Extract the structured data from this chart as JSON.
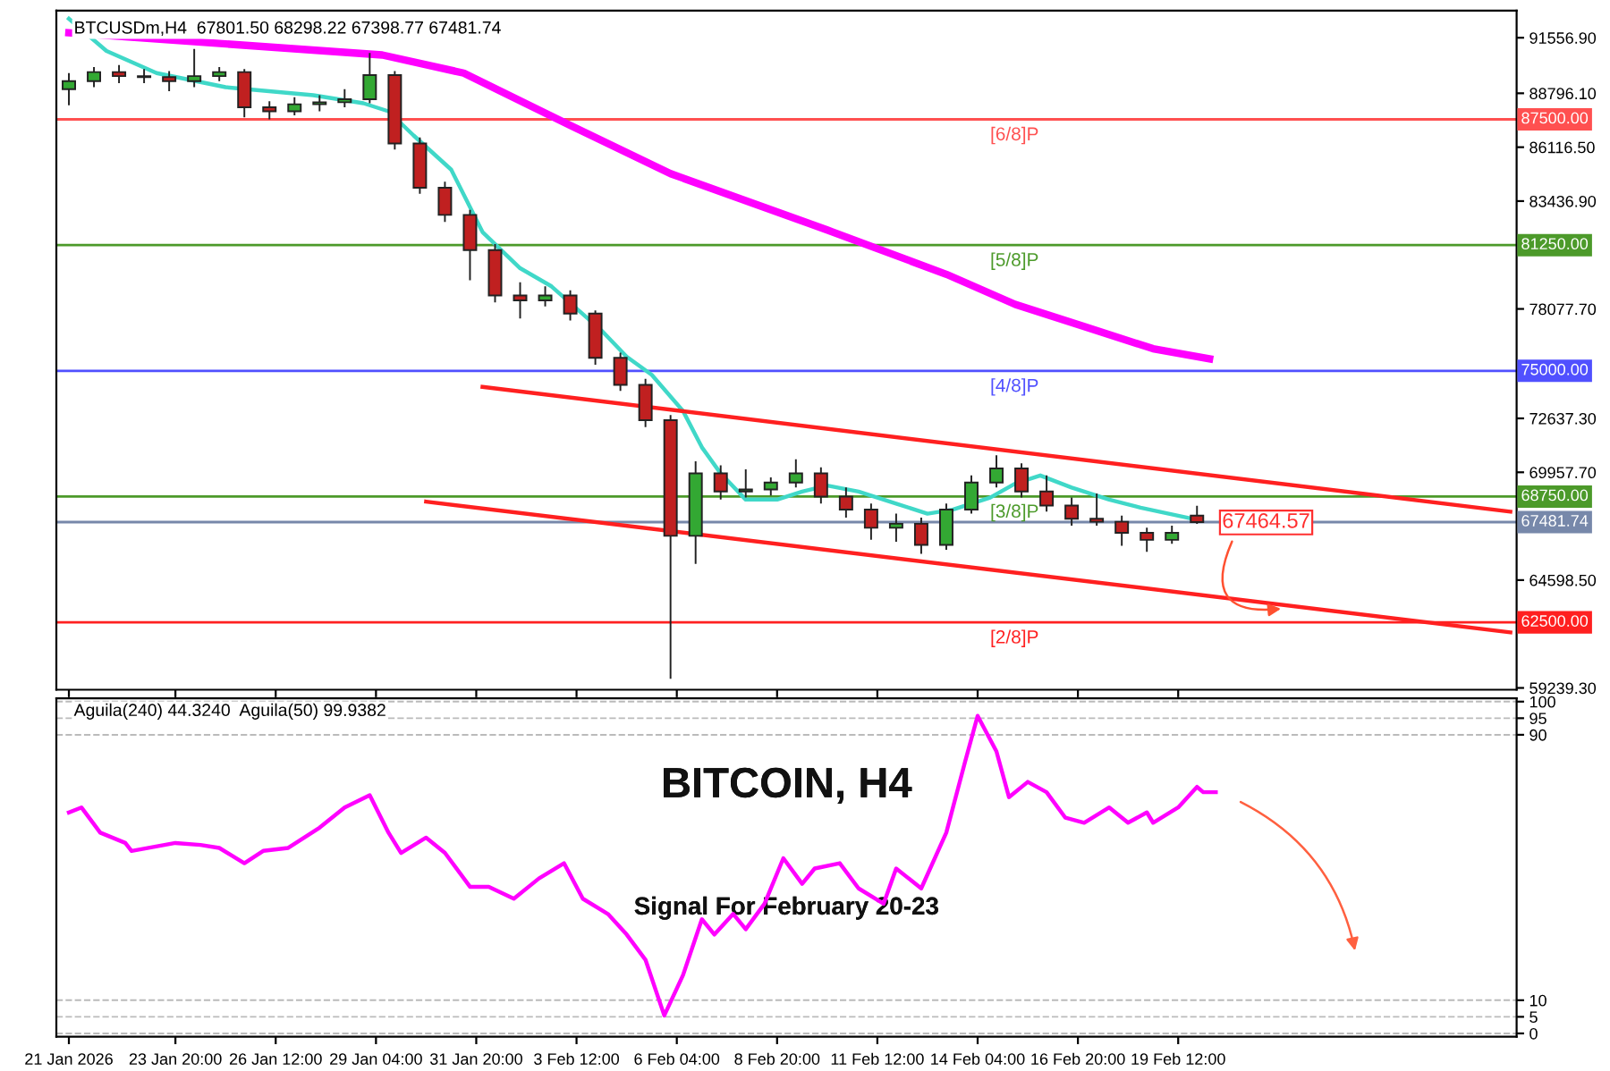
{
  "chart_data": [
    {
      "type": "candlestick",
      "title": "BTCUSDm,H4  67801.50 68298.22 67398.77 67481.74",
      "x": [
        "2026-01-21T00:00",
        "2026-01-21T16:00",
        "2026-01-22T08:00",
        "2026-01-23T00:00",
        "2026-01-23T16:00",
        "2026-01-24T08:00",
        "2026-01-25T00:00",
        "2026-01-25T16:00",
        "2026-01-26T08:00",
        "2026-01-27T00:00",
        "2026-01-27T16:00",
        "2026-01-28T08:00",
        "2026-01-29T00:00",
        "2026-01-29T16:00",
        "2026-01-30T08:00",
        "2026-01-31T00:00",
        "2026-01-31T16:00",
        "2026-02-01T08:00",
        "2026-02-02T00:00",
        "2026-02-02T16:00",
        "2026-02-03T08:00",
        "2026-02-04T00:00",
        "2026-02-04T16:00",
        "2026-02-05T08:00",
        "2026-02-06T00:00",
        "2026-02-06T16:00",
        "2026-02-07T08:00",
        "2026-02-08T00:00",
        "2026-02-08T16:00",
        "2026-02-09T08:00",
        "2026-02-10T00:00",
        "2026-02-10T16:00",
        "2026-02-11T08:00",
        "2026-02-12T00:00",
        "2026-02-12T16:00",
        "2026-02-13T08:00",
        "2026-02-14T00:00",
        "2026-02-14T16:00",
        "2026-02-15T08:00",
        "2026-02-16T00:00",
        "2026-02-16T16:00",
        "2026-02-17T08:00",
        "2026-02-18T00:00",
        "2026-02-18T16:00",
        "2026-02-19T08:00",
        "2026-02-20T00:00"
      ],
      "ohlc": [
        [
          89000,
          89800,
          88200,
          89400
        ],
        [
          89400,
          90100,
          89100,
          89850
        ],
        [
          89850,
          90200,
          89300,
          89650
        ],
        [
          89650,
          90000,
          89300,
          89600
        ],
        [
          89600,
          89900,
          88900,
          89400
        ],
        [
          89400,
          91000,
          89100,
          89650
        ],
        [
          89650,
          90100,
          89400,
          89850
        ],
        [
          89850,
          90000,
          87600,
          88100
        ],
        [
          88100,
          88400,
          87500,
          87900
        ],
        [
          87900,
          88600,
          87700,
          88250
        ],
        [
          88250,
          88700,
          87900,
          88350
        ],
        [
          88350,
          89000,
          88100,
          88500
        ],
        [
          88500,
          90800,
          88300,
          89700
        ],
        [
          89700,
          89900,
          86000,
          86300
        ],
        [
          86300,
          86600,
          83800,
          84100
        ],
        [
          84100,
          84400,
          82400,
          82750
        ],
        [
          82750,
          83000,
          79500,
          81000
        ],
        [
          81000,
          81300,
          78400,
          78750
        ],
        [
          78750,
          79400,
          77600,
          78500
        ],
        [
          78500,
          79200,
          78200,
          78750
        ],
        [
          78750,
          79000,
          77500,
          77850
        ],
        [
          77850,
          78000,
          75300,
          75650
        ],
        [
          75650,
          75900,
          74000,
          74300
        ],
        [
          74300,
          74600,
          72200,
          72550
        ],
        [
          72550,
          72800,
          59700,
          66800
        ],
        [
          66800,
          70500,
          65400,
          69900
        ],
        [
          69900,
          70300,
          68600,
          69000
        ],
        [
          69000,
          70100,
          68700,
          69100
        ],
        [
          69100,
          69700,
          68800,
          69450
        ],
        [
          69450,
          70600,
          69200,
          69900
        ],
        [
          69900,
          70200,
          68400,
          68750
        ],
        [
          68750,
          69200,
          67700,
          68100
        ],
        [
          68100,
          68400,
          66600,
          67200
        ],
        [
          67200,
          67900,
          66500,
          67400
        ],
        [
          67400,
          67700,
          65900,
          66350
        ],
        [
          66350,
          68400,
          66100,
          68100
        ],
        [
          68100,
          69800,
          67900,
          69450
        ],
        [
          69450,
          70800,
          69200,
          70150
        ],
        [
          70150,
          70400,
          68700,
          69000
        ],
        [
          69000,
          69800,
          68000,
          68300
        ],
        [
          68300,
          68700,
          67300,
          67650
        ],
        [
          67650,
          68900,
          67300,
          67500
        ],
        [
          67500,
          67800,
          66300,
          66950
        ],
        [
          66950,
          67200,
          66000,
          66600
        ],
        [
          66600,
          67300,
          66400,
          66950
        ],
        [
          67801.5,
          68298.22,
          67398.77,
          67481.74
        ]
      ],
      "colors": [
        "#33a833",
        "#33a833",
        "#c02020",
        "#c02020",
        "#c02020",
        "#33a833",
        "#33a833",
        "#c02020",
        "#c02020",
        "#33a833",
        "#33a833",
        "#33a833",
        "#33a833",
        "#c02020",
        "#c02020",
        "#c02020",
        "#c02020",
        "#c02020",
        "#c02020",
        "#33a833",
        "#c02020",
        "#c02020",
        "#c02020",
        "#c02020",
        "#c02020",
        "#33a833",
        "#c02020",
        "#33a833",
        "#33a833",
        "#33a833",
        "#c02020",
        "#c02020",
        "#c02020",
        "#33a833",
        "#c02020",
        "#33a833",
        "#33a833",
        "#33a833",
        "#c02020",
        "#c02020",
        "#c02020",
        "#c02020",
        "#c02020",
        "#c02020",
        "#33a833",
        "#c02020"
      ],
      "series": [
        {
          "type": "line",
          "color": "#ff00ff",
          "x": [
            "2026-01-21T00:00",
            "2026-01-29T08:00",
            "2026-01-31T12:00",
            "2026-02-03T08:00",
            "2026-02-06T00:00",
            "2026-02-10T04:00",
            "2026-02-13T08:00",
            "2026-02-15T04:00",
            "2026-02-17T00:00",
            "2026-02-18T20:00",
            "2026-02-20T08:00"
          ],
          "values": [
            91800,
            90700,
            89800,
            87200,
            84800,
            82000,
            79800,
            78300,
            77200,
            76100,
            75600
          ]
        },
        {
          "type": "line",
          "color": "#40d8c8",
          "x": [
            "2026-01-21T00:00",
            "2026-01-22T00:00",
            "2026-01-23T08:00",
            "2026-01-25T04:00",
            "2026-01-27T12:00",
            "2026-01-28T20:00",
            "2026-01-29T12:00",
            "2026-01-30T04:00",
            "2026-01-31T04:00",
            "2026-02-01T00:00",
            "2026-02-02T00:00",
            "2026-02-02T20:00",
            "2026-02-03T12:00",
            "2026-02-04T04:00",
            "2026-02-04T20:00",
            "2026-02-05T12:00",
            "2026-02-06T08:00",
            "2026-02-06T20:00",
            "2026-02-07T08:00",
            "2026-02-08T00:00",
            "2026-02-08T20:00",
            "2026-02-09T12:00",
            "2026-02-10T04:00",
            "2026-02-11T00:00",
            "2026-02-12T00:00",
            "2026-02-12T20:00",
            "2026-02-13T12:00",
            "2026-02-14T12:00",
            "2026-02-15T04:00",
            "2026-02-15T20:00",
            "2026-02-16T16:00",
            "2026-02-17T16:00",
            "2026-02-18T12:00",
            "2026-02-19T12:00",
            "2026-02-20T00:00"
          ],
          "values": [
            92500,
            90900,
            89800,
            89100,
            88700,
            88300,
            87900,
            86700,
            85000,
            81900,
            80100,
            79200,
            78100,
            77000,
            75700,
            74800,
            73000,
            71200,
            69900,
            68600,
            68600,
            69000,
            69300,
            69000,
            68400,
            67900,
            68100,
            68700,
            69400,
            69800,
            69200,
            68600,
            68200,
            67800,
            67600
          ]
        },
        {
          "type": "line",
          "color": "#ff2020",
          "x": [
            "2026-02-01T00:00",
            "2026-02-28T08:00"
          ],
          "values": [
            74200,
            68000
          ]
        },
        {
          "type": "line",
          "color": "#ff2020",
          "x": [
            "2026-01-30T12:00",
            "2026-02-28T08:00"
          ],
          "values": [
            68500,
            62000
          ]
        }
      ],
      "xlim": [
        "2026-01-20T16:00",
        "2026-02-28T12:00"
      ],
      "xticks": [
        {
          "value": "2026-01-21T00:00",
          "label": null
        },
        {
          "value": "2026-01-23T20:00",
          "label": null
        },
        {
          "value": "2026-01-26T12:00",
          "label": null
        },
        {
          "value": "2026-01-29T04:00",
          "label": null
        },
        {
          "value": "2026-01-31T20:00",
          "label": null
        },
        {
          "value": "2026-02-03T12:00",
          "label": null
        },
        {
          "value": "2026-02-06T04:00",
          "label": null
        },
        {
          "value": "2026-02-08T20:00",
          "label": null
        },
        {
          "value": "2026-02-11T12:00",
          "label": null
        },
        {
          "value": "2026-02-14T04:00",
          "label": null
        },
        {
          "value": "2026-02-16T20:00",
          "label": null
        },
        {
          "value": "2026-02-19T12:00",
          "label": null
        }
      ],
      "ylim": [
        59150,
        92900
      ],
      "yticks": [
        {
          "value": 91556.9,
          "label": "91556.90"
        },
        {
          "value": 88796.1,
          "label": "88796.10"
        },
        {
          "value": 86116.5,
          "label": "86116.50"
        },
        {
          "value": 83436.9,
          "label": "83436.90"
        },
        {
          "value": 78077.7,
          "label": "78077.70"
        },
        {
          "value": 72637.3,
          "label": "72637.30"
        },
        {
          "value": 69957.7,
          "label": "69957.70"
        },
        {
          "value": 64598.5,
          "label": "64598.50"
        },
        {
          "value": 59239.3,
          "label": "59239.30"
        }
      ],
      "tick_labels": "y",
      "ref_lines": [
        {
          "axis": "y",
          "value": 87500,
          "label": "87500.00",
          "color": "#ff5050"
        },
        {
          "axis": "y",
          "value": 81250,
          "label": "81250.00",
          "color": "#4c9a2a"
        },
        {
          "axis": "y",
          "value": 75000,
          "label": "75000.00",
          "color": "#5050ff"
        },
        {
          "axis": "y",
          "value": 68750,
          "label": "68750.00",
          "color": "#4c9a2a"
        },
        {
          "axis": "y",
          "value": 67481.74,
          "label": "67481.74",
          "color": "#7788aa"
        },
        {
          "axis": "y",
          "value": 62500,
          "label": "62500.00",
          "color": "#ff2020"
        }
      ],
      "annotations": [
        {
          "text": "[6/8]P",
          "x": "2026-02-14T12:00",
          "y": 87500
        },
        {
          "text": "[5/8]P",
          "x": "2026-02-14T12:00",
          "y": 81250
        },
        {
          "text": "[4/8]P",
          "x": "2026-02-14T12:00",
          "y": 75000
        },
        {
          "text": "[3/8]P",
          "x": "2026-02-14T12:00",
          "y": 68750
        },
        {
          "text": "[2/8]P",
          "x": "2026-02-14T12:00",
          "y": 62500
        },
        {
          "text": "67464.57",
          "x": "2026-02-20T16:00",
          "y": 67464.57
        }
      ]
    },
    {
      "type": "line",
      "title": "Aguila(240) 44.3240  Aguila(50) 99.9382",
      "series": [
        {
          "color": "#ff00ff",
          "x": [
            "2026-01-21T00:00",
            "2026-01-21T08:00",
            "2026-01-21T20:00",
            "2026-01-22T12:00",
            "2026-01-22T16:00",
            "2026-01-23T20:00",
            "2026-01-24T12:00",
            "2026-01-25T00:00",
            "2026-01-25T16:00",
            "2026-01-26T04:00",
            "2026-01-26T20:00",
            "2026-01-27T16:00",
            "2026-01-28T08:00",
            "2026-01-29T00:00",
            "2026-01-29T12:00",
            "2026-01-29T20:00",
            "2026-01-30T12:00",
            "2026-01-31T00:00",
            "2026-01-31T16:00",
            "2026-02-01T04:00",
            "2026-02-01T20:00",
            "2026-02-02T12:00",
            "2026-02-03T04:00",
            "2026-02-03T16:00",
            "2026-02-04T08:00",
            "2026-02-04T20:00",
            "2026-02-05T08:00",
            "2026-02-05T20:00",
            "2026-02-06T08:00",
            "2026-02-06T20:00",
            "2026-02-07T04:00",
            "2026-02-07T16:00",
            "2026-02-08T00:00",
            "2026-02-08T12:00",
            "2026-02-09T00:00",
            "2026-02-09T12:00",
            "2026-02-09T20:00",
            "2026-02-10T12:00",
            "2026-02-11T00:00",
            "2026-02-11T16:00",
            "2026-02-12T00:00",
            "2026-02-12T16:00",
            "2026-02-13T08:00",
            "2026-02-13T20:00",
            "2026-02-14T04:00",
            "2026-02-14T16:00",
            "2026-02-15T00:00",
            "2026-02-15T12:00",
            "2026-02-16T00:00",
            "2026-02-16T12:00",
            "2026-02-17T00:00",
            "2026-02-17T16:00",
            "2026-02-18T04:00",
            "2026-02-18T16:00",
            "2026-02-18T20:00",
            "2026-02-19T12:00",
            "2026-02-20T00:00",
            "2026-02-20T04:00",
            "2026-02-20T12:00"
          ],
          "values": [
            66.6,
            68.1,
            60.5,
            57.4,
            55.0,
            57.4,
            56.8,
            55.9,
            51.3,
            55.0,
            55.9,
            62.0,
            68.1,
            71.8,
            60.5,
            54.4,
            59.0,
            54.4,
            44.2,
            44.2,
            40.6,
            46.7,
            51.3,
            40.6,
            36.0,
            29.8,
            22.2,
            5.4,
            17.6,
            34.4,
            29.8,
            36.0,
            31.4,
            39.1,
            52.8,
            45.1,
            49.7,
            51.3,
            43.7,
            39.1,
            49.7,
            43.7,
            60.5,
            81.9,
            95.7,
            85.0,
            71.2,
            75.8,
            72.7,
            65.0,
            63.5,
            68.1,
            63.5,
            66.6,
            63.5,
            68.1,
            74.3,
            72.7,
            72.7
          ]
        }
      ],
      "xlim": [
        "2026-01-20T16:00",
        "2026-02-28T12:00"
      ],
      "xticks": [
        {
          "value": "2026-01-21T00:00",
          "label": "21 Jan 2026"
        },
        {
          "value": "2026-01-23T20:00",
          "label": "23 Jan 20:00"
        },
        {
          "value": "2026-01-26T12:00",
          "label": "26 Jan 12:00"
        },
        {
          "value": "2026-01-29T04:00",
          "label": "29 Jan 04:00"
        },
        {
          "value": "2026-01-31T20:00",
          "label": "31 Jan 20:00"
        },
        {
          "value": "2026-02-03T12:00",
          "label": "3 Feb 12:00"
        },
        {
          "value": "2026-02-06T04:00",
          "label": "6 Feb 04:00"
        },
        {
          "value": "2026-02-08T20:00",
          "label": "8 Feb 20:00"
        },
        {
          "value": "2026-02-11T12:00",
          "label": "11 Feb 12:00"
        },
        {
          "value": "2026-02-14T04:00",
          "label": "14 Feb 04:00"
        },
        {
          "value": "2026-02-16T20:00",
          "label": "16 Feb 20:00"
        },
        {
          "value": "2026-02-19T12:00",
          "label": "19 Feb 12:00"
        }
      ],
      "ylim": [
        -1,
        101
      ],
      "yticks": [
        0,
        5,
        10,
        90,
        95,
        100
      ],
      "grid": "y",
      "annotations": [
        "BITCOIN, H4",
        "Signal For February 20-23"
      ]
    }
  ]
}
